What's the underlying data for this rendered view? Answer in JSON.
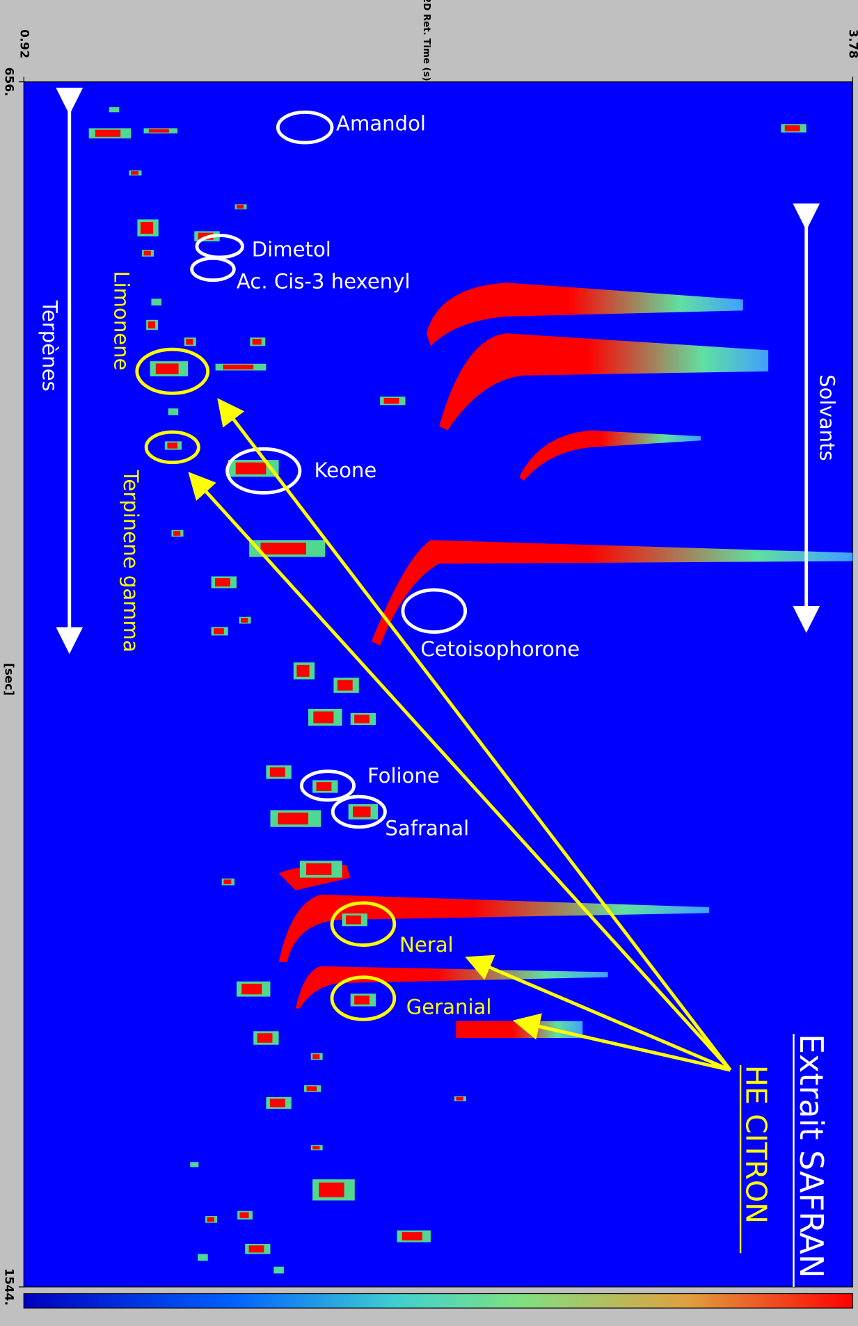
{
  "chart_data": {
    "type": "heatmap",
    "x_label": "[sec]",
    "y_label": "2D Ret. Time (s)",
    "xlim": [
      656,
      1544
    ],
    "xticks": [
      {
        "value": 656,
        "label": "656."
      },
      {
        "value": 1544,
        "label": "1544."
      }
    ],
    "ylim": [
      0.92,
      3.78
    ],
    "yticks": [
      0.92,
      3.78
    ],
    "annotations": [
      {
        "text": "Amandol",
        "color": "#ffffff"
      },
      {
        "text": "Dimetol",
        "color": "#ffffff"
      },
      {
        "text": "Ac. Cis-3 hexenyl",
        "color": "#ffffff"
      },
      {
        "text": "Keone",
        "color": "#ffffff"
      },
      {
        "text": "Cetoisophorone",
        "color": "#ffffff"
      },
      {
        "text": "Folione",
        "color": "#ffffff"
      },
      {
        "text": "Safranal",
        "color": "#ffffff"
      },
      {
        "text": "Neral",
        "color": "#ffff00"
      },
      {
        "text": "Geranial",
        "color": "#ffff00"
      },
      {
        "text": "Limonene",
        "color": "#ffff00"
      },
      {
        "text": "Terpinene gamma",
        "color": "#ffff00"
      },
      {
        "text": "Terpènes",
        "color": "#ffffff"
      },
      {
        "text": "Solvants",
        "color": "#ffffff"
      }
    ],
    "series": [
      {
        "name": "Extrait SAFRAN",
        "color": "#ffffff"
      },
      {
        "name": "HE CITRON",
        "color": "#ffff00"
      }
    ]
  }
}
